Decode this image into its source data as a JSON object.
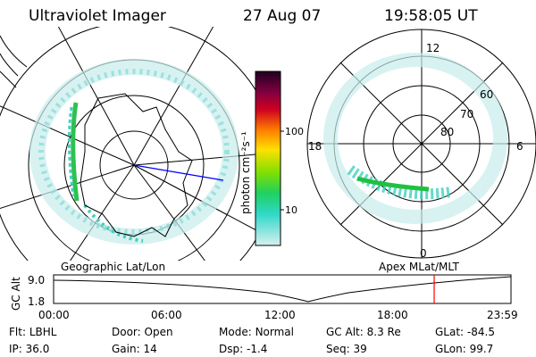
{
  "header": {
    "title": "Ultraviolet Imager",
    "date": "27 Aug 07",
    "time": "19:58:05 UT"
  },
  "colorbar": {
    "unit_label": "photon cm⁻²s⁻¹",
    "ticks": [
      {
        "label": "100",
        "value": 100
      },
      {
        "label": "10",
        "value": 10
      }
    ]
  },
  "polar_plot": {
    "clock_labels": {
      "top": "12",
      "bottom": "0",
      "left": "18",
      "right": "6"
    },
    "lat_labels": [
      "60",
      "70",
      "80"
    ]
  },
  "map_labels": {
    "left": "Geographic Lat/Lon",
    "right": "Apex MLat/MLT"
  },
  "timeline": {
    "axis_label": "GC Alt",
    "y_ticks": [
      "9.0",
      "1.8"
    ],
    "x_ticks": [
      "00:00",
      "06:00",
      "12:00",
      "18:00",
      "23:59"
    ],
    "current_time_hours": 19.97,
    "marker_color": "#ff0000"
  },
  "footer": {
    "row1": [
      {
        "key": "Flt:",
        "value": "LBHL"
      },
      {
        "key": "Door:",
        "value": "Open"
      },
      {
        "key": "Mode:",
        "value": "Normal"
      },
      {
        "key": "GC Alt:",
        "value": "8.3 Re"
      },
      {
        "key": "GLat:",
        "value": "-84.5"
      }
    ],
    "row2": [
      {
        "key": "IP:",
        "value": "36.0"
      },
      {
        "key": "Gain:",
        "value": "14"
      },
      {
        "key": "Dsp:",
        "value": "-1.4"
      },
      {
        "key": "Seq:",
        "value": "39"
      },
      {
        "key": "GLon:",
        "value": "99.7"
      }
    ]
  },
  "colors": {
    "aurora_low": "#b8e8e8",
    "aurora_mid": "#40d0c0",
    "aurora_high": "#20c040",
    "mlt_line": "#0000ff"
  }
}
